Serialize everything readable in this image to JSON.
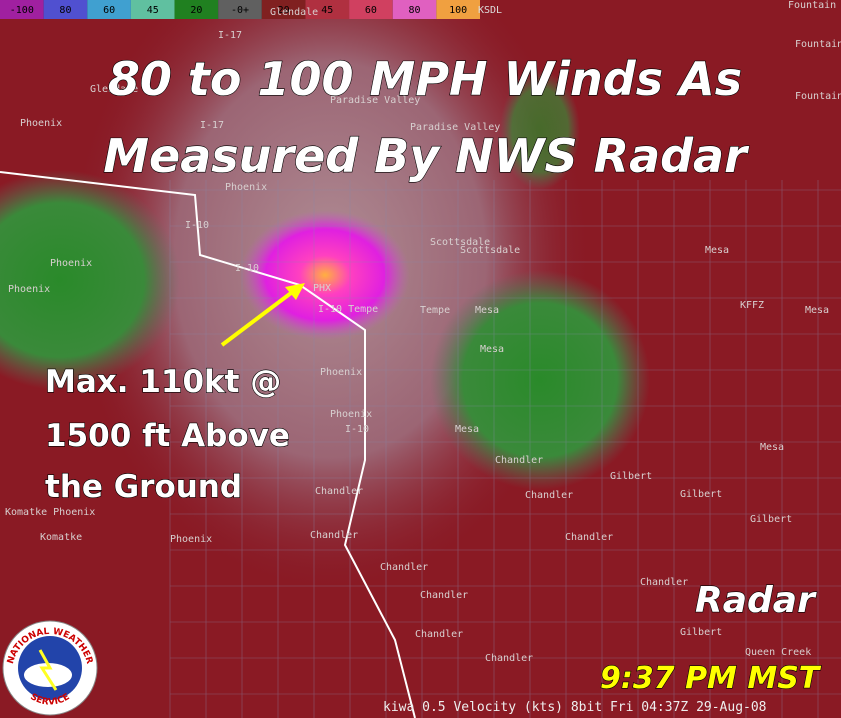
{
  "colorbar": {
    "labels": [
      "-100",
      "80",
      "60",
      "45",
      "20",
      "-0+",
      "20",
      "45",
      "60",
      "80",
      "100"
    ]
  },
  "station": "KSDL",
  "headline": [
    "80 to 100 MPH Winds As",
    "Measured By NWS Radar"
  ],
  "annotation": [
    "Max. 110kt @",
    "1500 ft Above",
    "the Ground"
  ],
  "radar_label": "Radar",
  "time": "9:37 PM MST",
  "status": "kiwa 0.5 Velocity (kts)  8bit Fri 04:37Z 29-Aug-08",
  "logo": {
    "top": "NATIONAL WEATHER",
    "bottom": "SERVICE"
  },
  "place_labels": [
    "Glendale",
    "I-17",
    "Fountain Hills",
    "Fountain Hills",
    "Fountain Hills",
    "Glendale",
    "Paradise Valley",
    "Paradise Valley",
    "I-17",
    "Phoenix",
    "Phoenix",
    "I-10",
    "Scottsdale",
    "Scottsdale",
    "Mesa",
    "Phoenix",
    "Phoenix",
    "PHX",
    "I-10",
    "I-10 Tempe",
    "Tempe",
    "Mesa",
    "KFFZ",
    "Mesa",
    "Mesa",
    "Phoenix",
    "Phoenix",
    "I-10",
    "Mesa",
    "Chandler",
    "Chandler",
    "Chandler",
    "Gilbert",
    "Gilbert",
    "Gilbert",
    "Komatke Phoenix",
    "Komatke",
    "Phoenix",
    "Chandler",
    "Chandler",
    "Chandler",
    "Chandler",
    "Chandler",
    "Chandler",
    "Gilbert",
    "Queen Creek",
    "Chandler",
    "Mesa"
  ]
}
